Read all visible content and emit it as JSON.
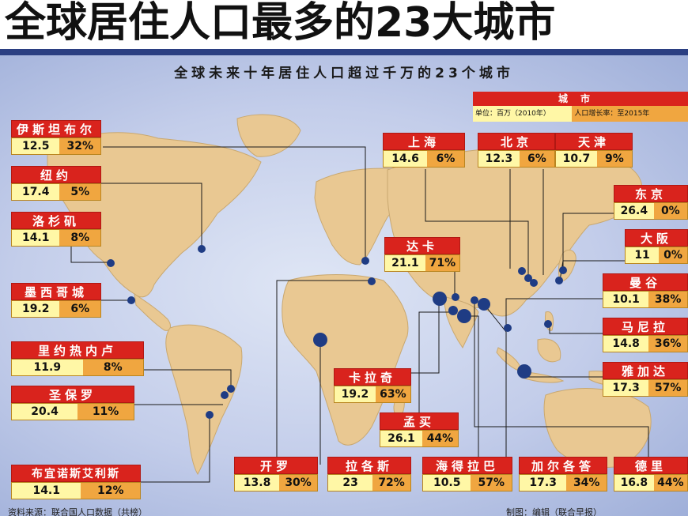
{
  "title": "全球居住人口最多的23大城市",
  "subtitle": "全球未来十年居住人口超过千万的23个城市",
  "legend": {
    "header": "城市",
    "pop": "单位：百万（2010年）",
    "growth": "人口增长率：至2015年"
  },
  "cities": [
    {
      "id": "istanbul",
      "name": "伊斯坦布尔",
      "pop": "12.5",
      "growth": "32%"
    },
    {
      "id": "newyork",
      "name": "纽约",
      "pop": "17.4",
      "growth": "5%"
    },
    {
      "id": "losangeles",
      "name": "洛杉矶",
      "pop": "14.1",
      "growth": "8%"
    },
    {
      "id": "mexicocity",
      "name": "墨西哥城",
      "pop": "19.2",
      "growth": "6%"
    },
    {
      "id": "rio",
      "name": "里约热内卢",
      "pop": "11.9",
      "growth": "8%"
    },
    {
      "id": "saopaulo",
      "name": "圣保罗",
      "pop": "20.4",
      "growth": "11%"
    },
    {
      "id": "buenosaires",
      "name": "布宜诺斯艾利斯",
      "pop": "14.1",
      "growth": "12%"
    },
    {
      "id": "cairo",
      "name": "开罗",
      "pop": "13.8",
      "growth": "30%"
    },
    {
      "id": "lagos",
      "name": "拉各斯",
      "pop": "23",
      "growth": "72%"
    },
    {
      "id": "karachi",
      "name": "卡拉奇",
      "pop": "19.2",
      "growth": "63%"
    },
    {
      "id": "mumbai",
      "name": "孟买",
      "pop": "26.1",
      "growth": "44%"
    },
    {
      "id": "hyderabad",
      "name": "海得拉巴",
      "pop": "10.5",
      "growth": "57%"
    },
    {
      "id": "kolkata",
      "name": "加尔各答",
      "pop": "17.3",
      "growth": "34%"
    },
    {
      "id": "delhi",
      "name": "德里",
      "pop": "16.8",
      "growth": "44%"
    },
    {
      "id": "dhaka",
      "name": "达卡",
      "pop": "21.1",
      "growth": "71%"
    },
    {
      "id": "shanghai",
      "name": "上海",
      "pop": "14.6",
      "growth": "6%"
    },
    {
      "id": "beijing",
      "name": "北京",
      "pop": "12.3",
      "growth": "6%"
    },
    {
      "id": "tianjin",
      "name": "天津",
      "pop": "10.7",
      "growth": "9%"
    },
    {
      "id": "tokyo",
      "name": "东京",
      "pop": "26.4",
      "growth": "0%"
    },
    {
      "id": "osaka",
      "name": "大阪",
      "pop": "11",
      "growth": "0%"
    },
    {
      "id": "bangkok",
      "name": "曼谷",
      "pop": "10.1",
      "growth": "38%"
    },
    {
      "id": "manila",
      "name": "马尼拉",
      "pop": "14.8",
      "growth": "36%"
    },
    {
      "id": "jakarta",
      "name": "雅加达",
      "pop": "17.3",
      "growth": "57%"
    }
  ],
  "footer": {
    "left": "资料来源：联合国人口数据（共榜）",
    "right": "制图：编辑（联合早报）"
  },
  "colors": {
    "name_bg": "#d9231d",
    "pop_bg": "#fff7a6",
    "growth_bg": "#f0a640",
    "land": "#e9c892",
    "dot": "#1f3c84"
  }
}
